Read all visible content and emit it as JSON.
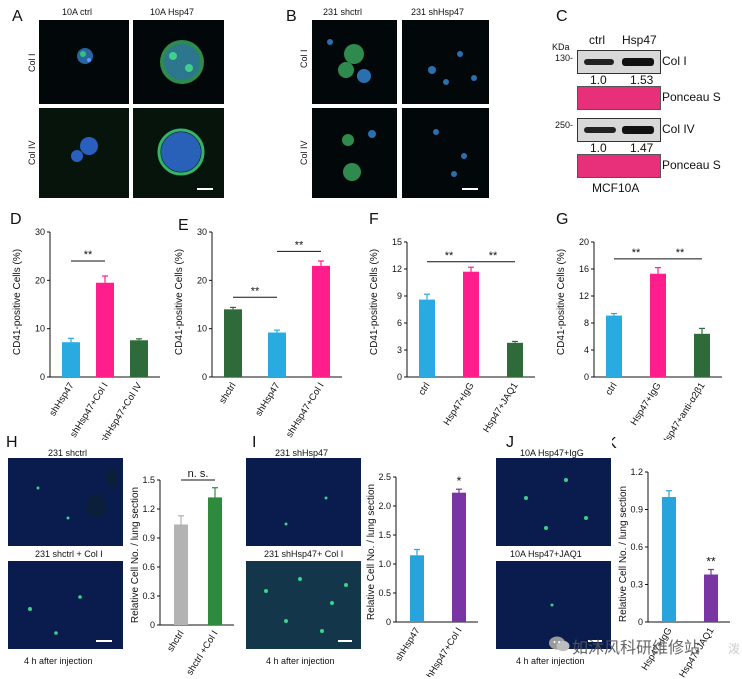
{
  "panels": {
    "A": {
      "letter": "A",
      "col1": "10A ctrl",
      "col2": "10A Hsp47",
      "row1": "Col I",
      "row2": "Col IV"
    },
    "B": {
      "letter": "B",
      "col1": "231 shctrl",
      "col2": "231 shHsp47",
      "row1": "Col I",
      "row2": "Col IV"
    },
    "C": {
      "letter": "C",
      "kda": "KDa",
      "col1": "ctrl",
      "col2": "Hsp47",
      "m1": "130-",
      "m2": "250-",
      "band1": "Col I",
      "q1a": "1.0",
      "q1b": "1.53",
      "pon1": "Ponceau S",
      "band2": "Col IV",
      "q2a": "1.0",
      "q2b": "1.47",
      "pon2": "Ponceau S",
      "cell": "MCF10A"
    },
    "H": {
      "letter": "H",
      "top": "231 shctrl",
      "bottom": "231 shctrl + Col I",
      "foot": "4 h after injection"
    },
    "I": {
      "letter": "I",
      "top": "231 shHsp47",
      "bottom": "231 shHsp47+ Col I",
      "foot": "4 h after injection"
    },
    "J": {
      "letter": "J",
      "top": "10A Hsp47+IgG",
      "bottom": "10A Hsp47+JAQ1",
      "foot": "4 h after injection"
    }
  },
  "watermark": {
    "text": "如沐风科研维修站",
    "side": "泼"
  },
  "chart_data": [
    {
      "id": "D",
      "type": "bar",
      "letter": "D",
      "ylabel": "CD41-positive Cells (%)",
      "ylim": [
        0,
        30
      ],
      "yticks": [
        "0",
        "10",
        "20",
        "30"
      ],
      "categories": [
        "shHsp47",
        "shHsp47+Col I",
        "shHsp47+Col IV"
      ],
      "values": [
        7.2,
        19.5,
        7.6
      ],
      "errors": [
        0.8,
        1.4,
        0.3
      ],
      "colors": [
        "#29abe2",
        "#ff1e8c",
        "#2f6b3a"
      ],
      "sig": [
        {
          "from": 0,
          "to": 1,
          "label": "**",
          "y": 24
        }
      ]
    },
    {
      "id": "E",
      "type": "bar",
      "letter": "E",
      "ylabel": "CD41-positive Cells (%)",
      "ylim": [
        0,
        30
      ],
      "yticks": [
        "0",
        "10",
        "20",
        "30"
      ],
      "categories": [
        "shctrl",
        "shHsp47",
        "shHsp47+Col I"
      ],
      "values": [
        14,
        9.2,
        23
      ],
      "errors": [
        0.4,
        0.5,
        1.0
      ],
      "colors": [
        "#2f6b3a",
        "#29abe2",
        "#ff1e8c"
      ],
      "sig": [
        {
          "from": 0,
          "to": 1,
          "label": "**",
          "y": 16.5
        },
        {
          "from": 1,
          "to": 2,
          "label": "**",
          "y": 26
        }
      ]
    },
    {
      "id": "F",
      "type": "bar",
      "letter": "F",
      "ylabel": "CD41-positive Cells (%)",
      "ylim": [
        0,
        15
      ],
      "yticks": [
        "0",
        "3",
        "6",
        "9",
        "12",
        "15"
      ],
      "categories": [
        "ctrl",
        "Hsp47+IgG",
        "Hsp47+JAQ1"
      ],
      "values": [
        8.6,
        11.7,
        3.8
      ],
      "errors": [
        0.6,
        0.5,
        0.15
      ],
      "colors": [
        "#29abe2",
        "#ff1e8c",
        "#2f6b3a"
      ],
      "sig": [
        {
          "from": 0,
          "to": 1,
          "label": "**",
          "y": 12.8
        },
        {
          "from": 1,
          "to": 2,
          "label": "**",
          "y": 12.8
        }
      ]
    },
    {
      "id": "G",
      "type": "bar",
      "letter": "G",
      "ylabel": "CD41-positive Cells (%)",
      "ylim": [
        0,
        20
      ],
      "yticks": [
        "0",
        "4",
        "8",
        "12",
        "16",
        "20"
      ],
      "categories": [
        "ctrl",
        "Hsp47+IgG",
        "Hsp47+anti-α2β1"
      ],
      "values": [
        9.1,
        15.3,
        6.4
      ],
      "errors": [
        0.3,
        0.9,
        0.8
      ],
      "colors": [
        "#29abe2",
        "#ff1e8c",
        "#2f6b3a"
      ],
      "sig": [
        {
          "from": 0,
          "to": 1,
          "label": "**",
          "y": 17.5
        },
        {
          "from": 1,
          "to": 2,
          "label": "**",
          "y": 17.5
        }
      ]
    },
    {
      "id": "Hc",
      "type": "bar",
      "ylabel": "Relative Cell No. / lung section",
      "ylim": [
        0,
        1.5
      ],
      "yticks": [
        "0",
        "0.3",
        "0.6",
        "0.9",
        "1.2",
        "1.5"
      ],
      "categories": [
        "shctrl",
        "shctrl +Col I"
      ],
      "values": [
        1.04,
        1.32
      ],
      "errors": [
        0.09,
        0.1
      ],
      "colors": [
        "#b3b3b3",
        "#2e8b3e"
      ],
      "sig": [
        {
          "from": 0,
          "to": 1,
          "label": "n. s.",
          "y": 1.5
        }
      ]
    },
    {
      "id": "Ic",
      "type": "bar",
      "ylabel": "Relative Cell No. / lung section",
      "ylim": [
        0,
        2.5
      ],
      "yticks": [
        "0",
        "0.5",
        "1.0",
        "1.5",
        "2.0",
        "2.5"
      ],
      "categories": [
        "shHsp47",
        "shHsp47+Col I"
      ],
      "values": [
        1.15,
        2.23
      ],
      "errors": [
        0.1,
        0.06
      ],
      "colors": [
        "#29a3dc",
        "#7a35a5"
      ],
      "stars": [
        {
          "index": 1,
          "label": "*"
        }
      ]
    },
    {
      "id": "Kc",
      "type": "bar",
      "letter": "K",
      "ylabel": "Relative Cell No. / lung section",
      "ylim": [
        0,
        1.2
      ],
      "yticks": [
        "0",
        "0.3",
        "0.6",
        "0.9",
        "1.2"
      ],
      "categories": [
        "Hsp47+IgG",
        "Hsp47+JAQ1"
      ],
      "values": [
        1.0,
        0.38
      ],
      "errors": [
        0.05,
        0.04
      ],
      "colors": [
        "#29a3dc",
        "#7a35a5"
      ],
      "stars": [
        {
          "index": 1,
          "label": "**"
        }
      ]
    }
  ]
}
